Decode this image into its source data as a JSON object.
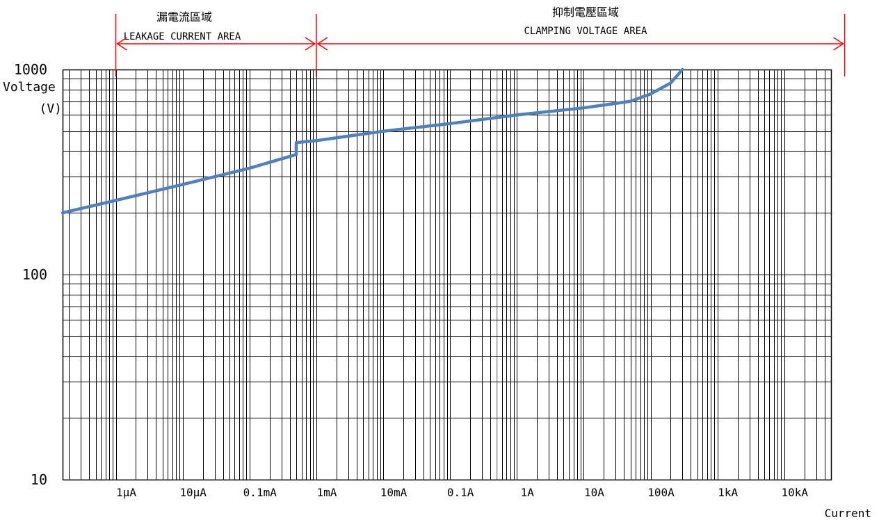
{
  "chart_data": {
    "type": "line",
    "xlabel": "Current",
    "ylabel": [
      "Voltage",
      "(V)"
    ],
    "xscale": "log",
    "yscale": "log",
    "xlim": [
      1.6e-07,
      50000.0
    ],
    "ylim": [
      10,
      1000
    ],
    "x_tick_values": [
      1e-06,
      1e-05,
      0.0001,
      0.001,
      0.01,
      0.1,
      1,
      10,
      100,
      1000,
      10000
    ],
    "x_tick_labels": [
      "1μA",
      "10μA",
      "0.1mA",
      "1mA",
      "10mA",
      "0.1A",
      "1A",
      "10A",
      "100A",
      "1kA",
      "10kA"
    ],
    "y_tick_values": [
      10,
      100,
      1000
    ],
    "y_tick_labels": [
      "10",
      "100",
      "1000"
    ],
    "grid": true,
    "series": [
      {
        "color": "#4f81bd",
        "x": [
          1.6e-07,
          1e-06,
          1e-05,
          0.0001,
          0.0005,
          0.0005,
          0.001,
          0.01,
          0.1,
          1,
          10,
          50,
          100,
          200,
          300
        ],
        "y": [
          200,
          230,
          275,
          330,
          385,
          440,
          450,
          500,
          545,
          600,
          650,
          700,
          760,
          860,
          1000
        ]
      }
    ],
    "annotations": [
      {
        "title": "漏電流區域",
        "subtitle": "LEAKAGE CURRENT AREA",
        "x_start": 1e-06,
        "x_end": 0.001
      },
      {
        "title": "抑制電壓區域",
        "subtitle": "CLAMPING VOLTAGE AREA",
        "x_start": 0.001,
        "x_end": 80000.0
      }
    ],
    "colors": {
      "grid": "#000000",
      "highlight_grid": "#b0b0b0",
      "annotation": "#ff0000",
      "series": "#4f81bd"
    }
  }
}
